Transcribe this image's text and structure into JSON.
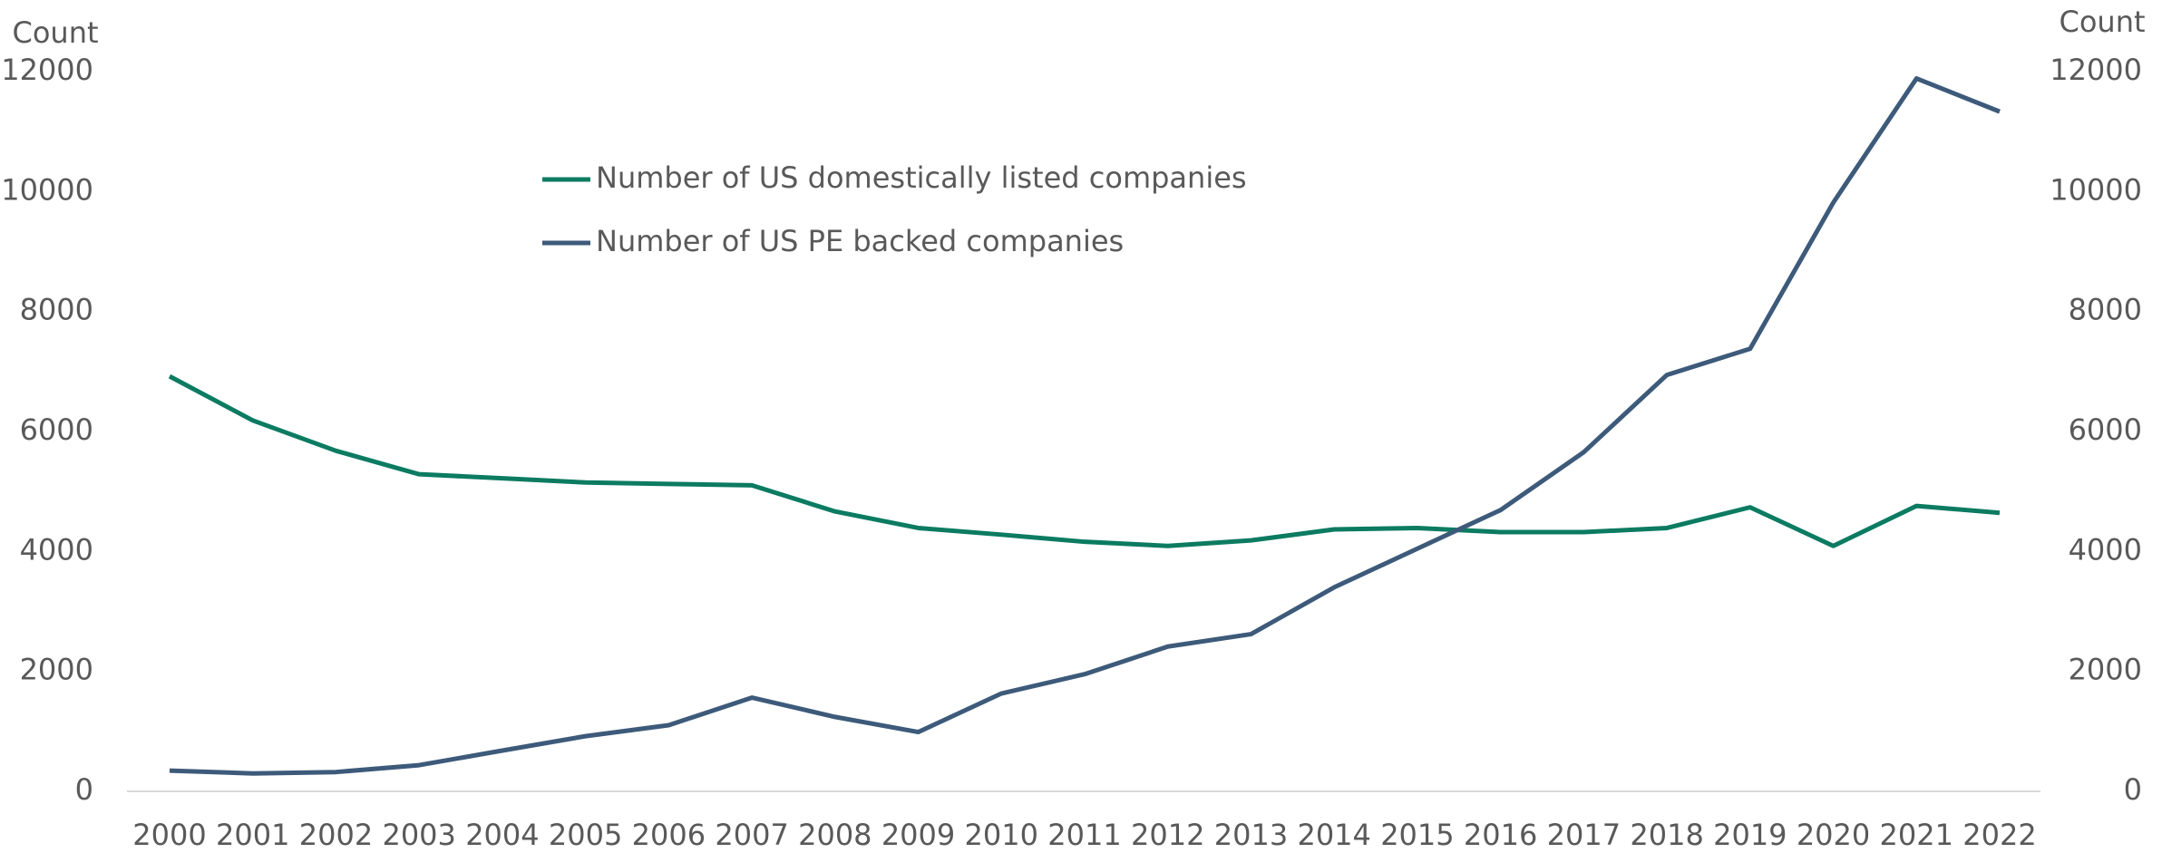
{
  "chart_data": {
    "type": "line",
    "y_label": "Count",
    "y2_label": "Count",
    "x": [
      2000,
      2001,
      2002,
      2003,
      2004,
      2005,
      2006,
      2007,
      2008,
      2009,
      2010,
      2011,
      2012,
      2013,
      2014,
      2015,
      2016,
      2017,
      2018,
      2019,
      2020,
      2021,
      2022
    ],
    "series": [
      {
        "name": "Number of US domestically listed companies",
        "color": "#0b7b61",
        "values": [
          6920,
          6184,
          5678,
          5287,
          5220,
          5150,
          5126,
          5103,
          4667,
          4391,
          4280,
          4161,
          4092,
          4184,
          4368,
          4391,
          4322,
          4322,
          4391,
          4736,
          4092,
          4759,
          4644
        ]
      },
      {
        "name": "Number of US PE backed companies",
        "color": "#3d5a7a",
        "values": [
          345,
          299,
          322,
          437,
          680,
          920,
          1103,
          1563,
          1241,
          989,
          1632,
          1954,
          2414,
          2621,
          3402,
          4046,
          4690,
          5655,
          6943,
          7379,
          9816,
          11885,
          11333
        ]
      }
    ],
    "ylim": [
      0,
      12000
    ],
    "yticks": [
      0,
      2000,
      4000,
      6000,
      8000,
      10000,
      12000
    ],
    "y2lim": [
      0,
      12000
    ],
    "y2ticks": [
      0,
      2000,
      4000,
      6000,
      8000,
      10000,
      12000
    ],
    "grid": false
  }
}
